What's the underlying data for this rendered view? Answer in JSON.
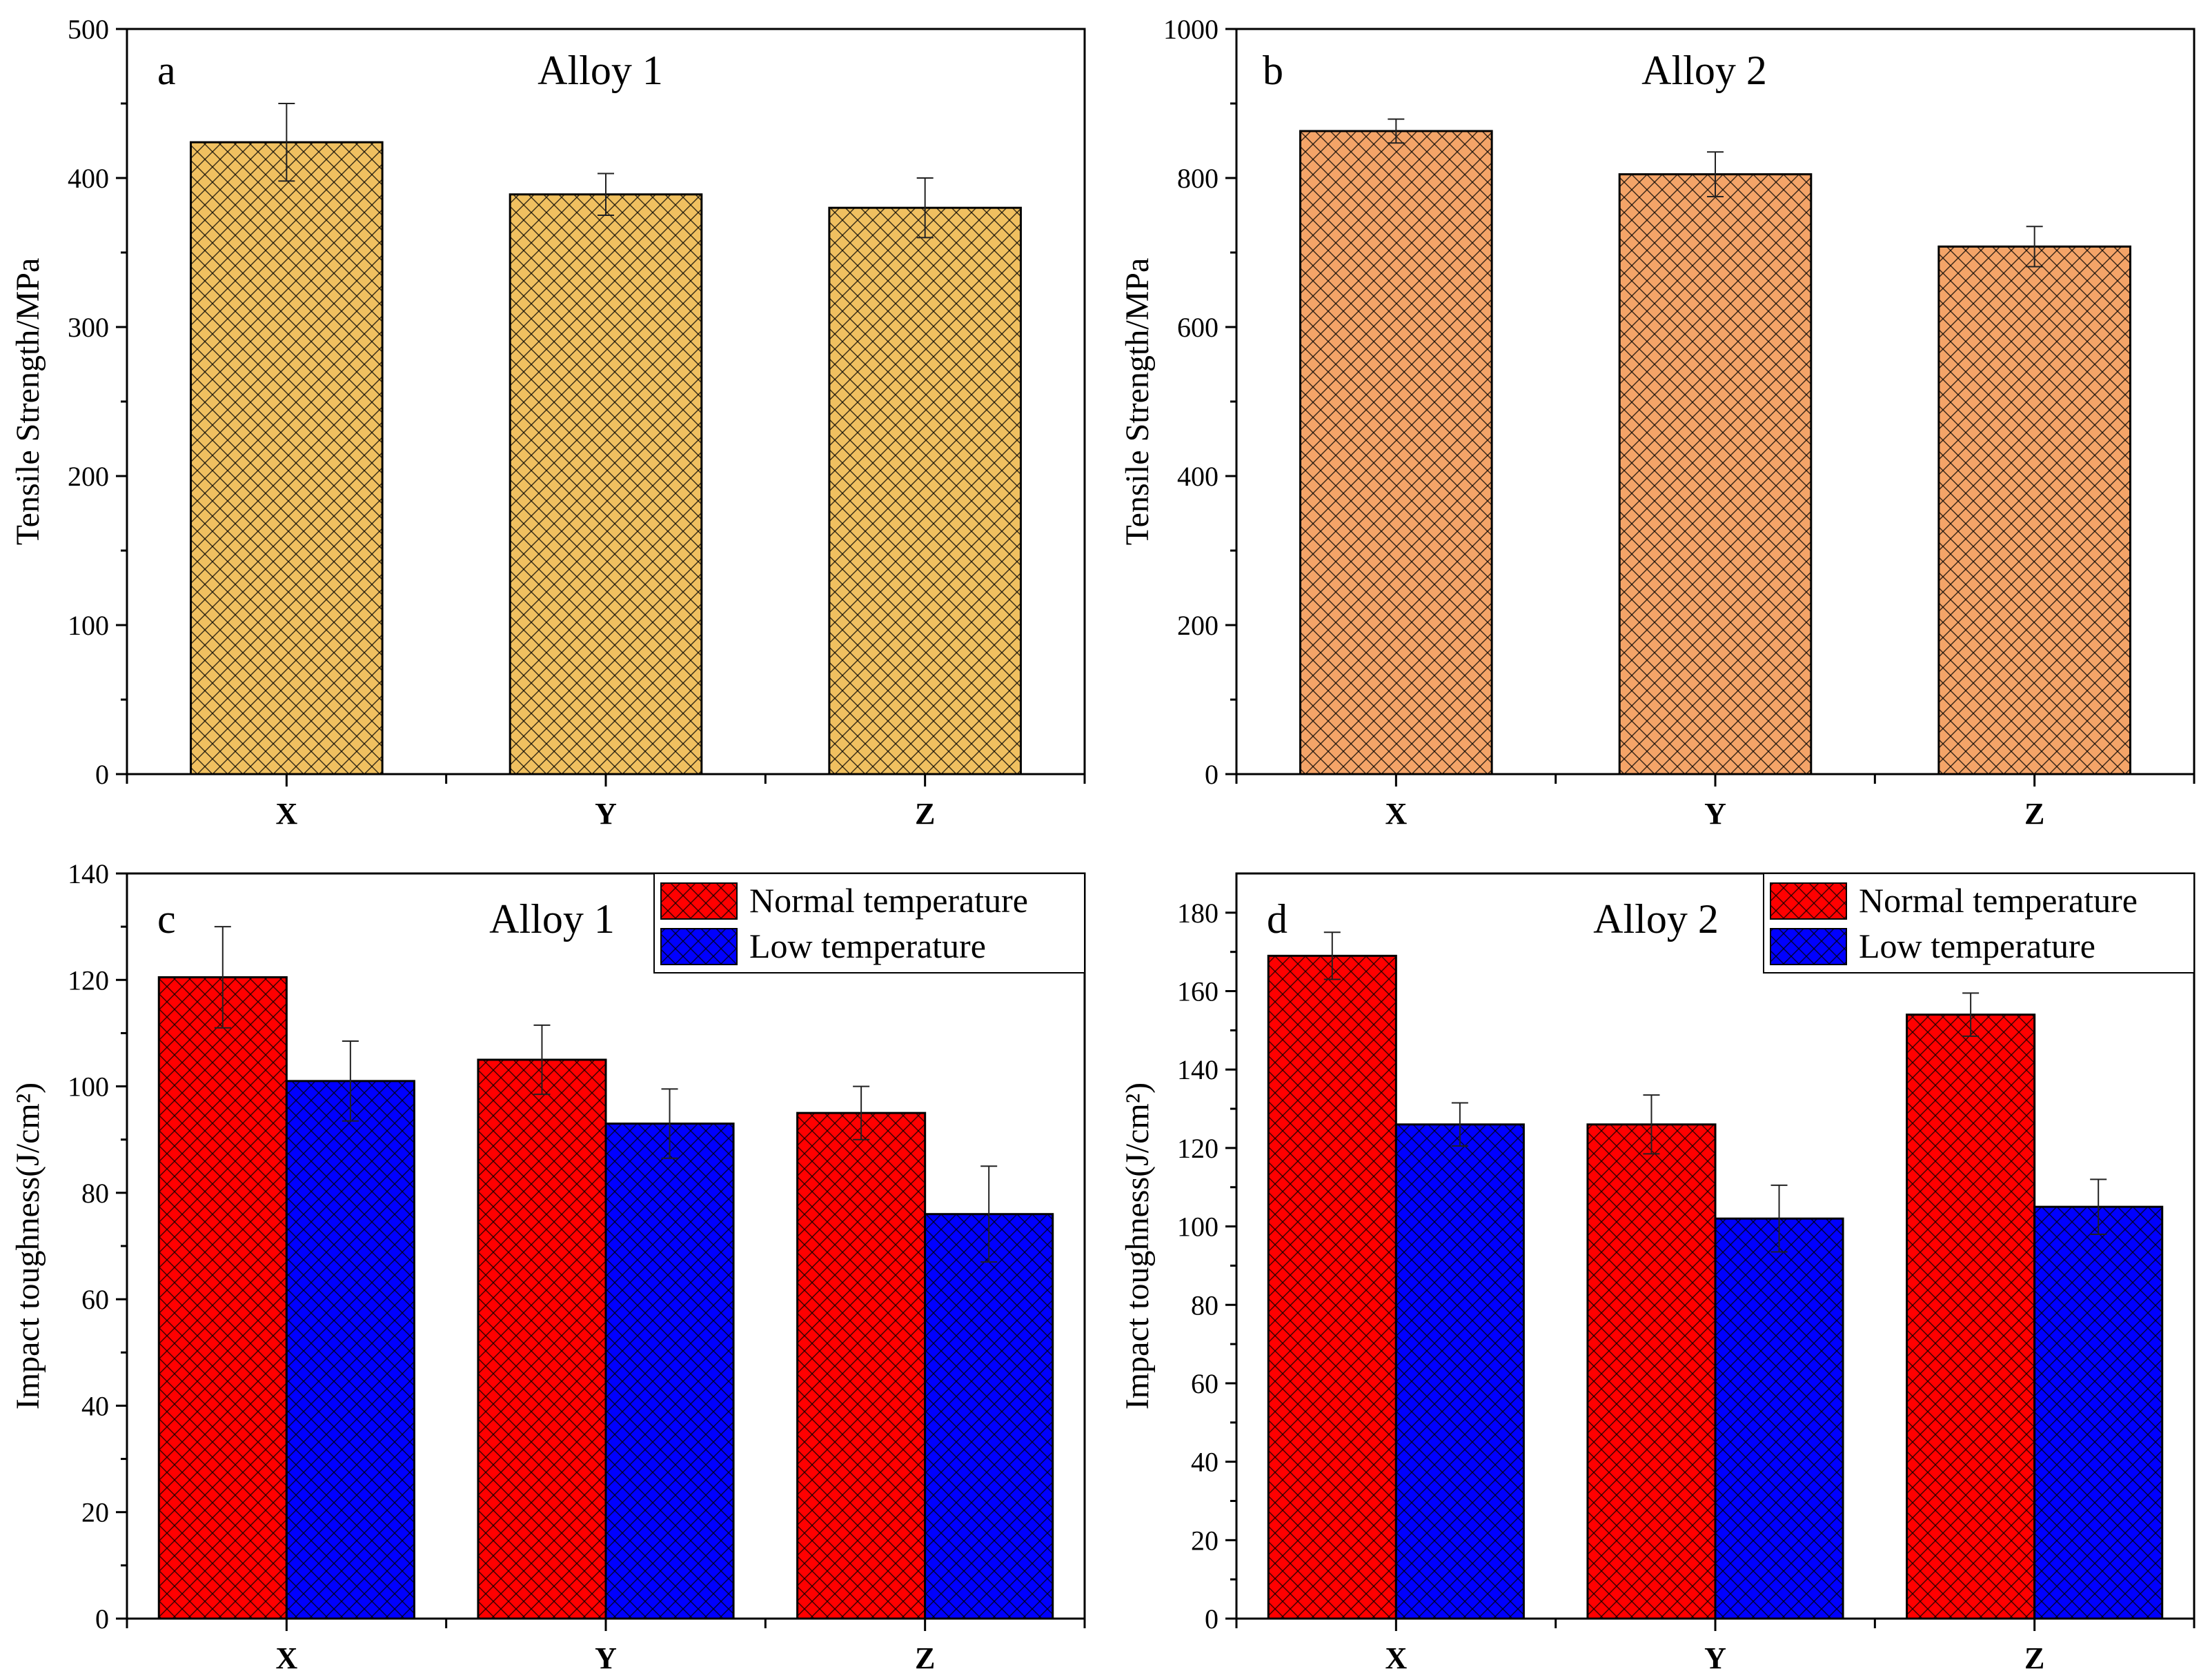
{
  "chart_data": [
    {
      "id": "a",
      "type": "bar",
      "panel_letter": "a",
      "title": "Alloy 1",
      "ylabel": "Tensile Strength/MPa",
      "xlabel": "",
      "ylim": [
        0,
        500
      ],
      "yticks": [
        0,
        100,
        200,
        300,
        400,
        500
      ],
      "categories": [
        "X",
        "Y",
        "Z"
      ],
      "series": [
        {
          "name": "Tensile Strength",
          "color": "#f0c060",
          "values": [
            424,
            389,
            380
          ],
          "errors": [
            26,
            14,
            20
          ]
        }
      ]
    },
    {
      "id": "b",
      "type": "bar",
      "panel_letter": "b",
      "title": "Alloy 2",
      "ylabel": "Tensile Strength/MPa",
      "xlabel": "",
      "ylim": [
        0,
        1000
      ],
      "yticks": [
        0,
        200,
        400,
        600,
        800,
        1000
      ],
      "categories": [
        "X",
        "Y",
        "Z"
      ],
      "series": [
        {
          "name": "Tensile Strength",
          "color": "#f4a468",
          "values": [
            863,
            805,
            708
          ],
          "errors": [
            16,
            30,
            27
          ]
        }
      ]
    },
    {
      "id": "c",
      "type": "bar",
      "panel_letter": "c",
      "title": "Alloy 1",
      "ylabel": "Impact toughness(J/cm²)",
      "xlabel": "",
      "ylim": [
        0,
        140
      ],
      "yticks": [
        0,
        20,
        40,
        60,
        80,
        100,
        120,
        140
      ],
      "categories": [
        "X",
        "Y",
        "Z"
      ],
      "legend_position": "top-right",
      "series": [
        {
          "name": "Normal temperature",
          "color": "#ff0000",
          "values": [
            120.5,
            105,
            95
          ],
          "errors": [
            9.5,
            6.5,
            5
          ]
        },
        {
          "name": "Low temperature",
          "color": "#0000ff",
          "values": [
            101,
            93,
            76
          ],
          "errors": [
            7.5,
            6.5,
            9
          ]
        }
      ]
    },
    {
      "id": "d",
      "type": "bar",
      "panel_letter": "d",
      "title": "Alloy 2",
      "ylabel": "Impact toughness(J/cm²)",
      "xlabel": "",
      "ylim": [
        0,
        190
      ],
      "yticks": [
        0,
        20,
        40,
        60,
        80,
        100,
        120,
        140,
        160,
        180
      ],
      "categories": [
        "X",
        "Y",
        "Z"
      ],
      "legend_position": "top-right",
      "series": [
        {
          "name": "Normal temperature",
          "color": "#ff0000",
          "values": [
            169,
            126,
            154
          ],
          "errors": [
            6,
            7.5,
            5.5
          ]
        },
        {
          "name": "Low temperature",
          "color": "#0000ff",
          "values": [
            126,
            102,
            105
          ],
          "errors": [
            5.5,
            8.5,
            7
          ]
        }
      ]
    }
  ]
}
